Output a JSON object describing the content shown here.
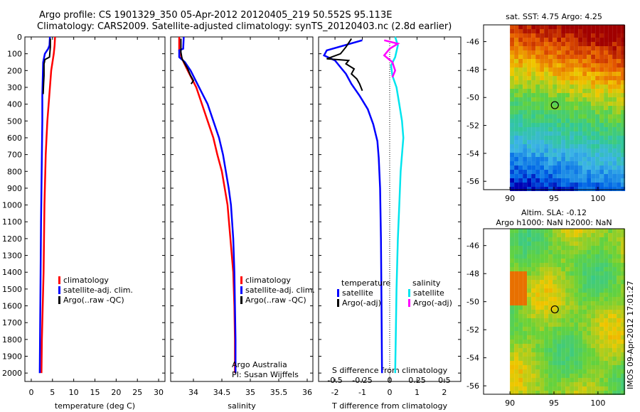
{
  "header": {
    "line1": "Argo profile: CS 1901329_350 05-Apr-2012 20120405_219 50.552S 95.113E",
    "line2": "Climatology: CARS2009. Satellite-adjusted climatology: synTS_20120403.nc (2.8d earlier)"
  },
  "footer_stamp": "IMOS 09-Apr-2012 17:01:27",
  "colors": {
    "climatology": "#ff0000",
    "satellite": "#0000ff",
    "argo": "#000000",
    "sat_salinity": "#00e5ee",
    "argo_salinity_diff": "#ff00ff"
  },
  "chart_data": [
    {
      "type": "line",
      "id": "temperature",
      "xlabel": "temperature (deg C)",
      "ylabel": "",
      "xlim": [
        -1.5,
        31.5
      ],
      "ylim": [
        2050,
        0
      ],
      "xticks": [
        0,
        5,
        10,
        15,
        20,
        25,
        30
      ],
      "yticks": [
        0,
        100,
        200,
        300,
        400,
        500,
        600,
        700,
        800,
        900,
        1000,
        1100,
        1200,
        1300,
        1400,
        1500,
        1600,
        1700,
        1800,
        1900,
        2000
      ],
      "legend": {
        "position": "bottom-center",
        "entries": [
          "climatology",
          "satellite-adj. clim.",
          "Argo(..raw -QC)"
        ]
      },
      "series": [
        {
          "name": "climatology",
          "color": "#ff0000",
          "points": [
            [
              5.6,
              0
            ],
            [
              5.5,
              50
            ],
            [
              5.3,
              100
            ],
            [
              5.0,
              150
            ],
            [
              4.7,
              200
            ],
            [
              4.4,
              300
            ],
            [
              4.1,
              400
            ],
            [
              3.8,
              500
            ],
            [
              3.6,
              600
            ],
            [
              3.4,
              700
            ],
            [
              3.3,
              800
            ],
            [
              3.2,
              900
            ],
            [
              3.1,
              1000
            ],
            [
              3.0,
              1200
            ],
            [
              2.9,
              1400
            ],
            [
              2.7,
              1600
            ],
            [
              2.5,
              1800
            ],
            [
              2.4,
              2000
            ]
          ]
        },
        {
          "name": "satellite-adj. clim.",
          "color": "#0000ff",
          "points": [
            [
              4.4,
              0
            ],
            [
              4.3,
              50
            ],
            [
              4.0,
              70
            ],
            [
              3.2,
              100
            ],
            [
              2.8,
              150
            ],
            [
              2.7,
              250
            ],
            [
              2.6,
              350
            ],
            [
              2.6,
              500
            ],
            [
              2.5,
              700
            ],
            [
              2.4,
              900
            ],
            [
              2.3,
              1100
            ],
            [
              2.2,
              1400
            ],
            [
              2.1,
              1700
            ],
            [
              2.0,
              2000
            ]
          ]
        },
        {
          "name": "Argo(..raw -QC)",
          "color": "#000000",
          "points": [
            [
              4.5,
              10
            ],
            [
              4.5,
              60
            ],
            [
              4.4,
              90
            ],
            [
              4.3,
              120
            ],
            [
              3.2,
              135
            ],
            [
              3.1,
              150
            ],
            [
              3.0,
              160
            ],
            [
              3.0,
              230
            ],
            [
              2.9,
              280
            ],
            [
              2.8,
              340
            ]
          ]
        }
      ]
    },
    {
      "type": "line",
      "id": "salinity",
      "xlabel": "salinity",
      "ylabel": "",
      "xlim": [
        33.6,
        36.1
      ],
      "ylim": [
        2050,
        0
      ],
      "xticks": [
        34,
        34.5,
        35,
        35.5,
        36
      ],
      "legend": {
        "position": "bottom-center",
        "entries": [
          "climatology",
          "satellite-adj. clim.",
          "Argo(..raw -QC)"
        ]
      },
      "annotations": [
        "Argo Australia",
        "PI: Susan Wijffels"
      ],
      "series": [
        {
          "name": "climatology",
          "color": "#ff0000",
          "points": [
            [
              33.75,
              0
            ],
            [
              33.75,
              80
            ],
            [
              33.8,
              130
            ],
            [
              33.9,
              200
            ],
            [
              34.05,
              300
            ],
            [
              34.15,
              400
            ],
            [
              34.25,
              500
            ],
            [
              34.35,
              600
            ],
            [
              34.42,
              700
            ],
            [
              34.5,
              800
            ],
            [
              34.55,
              900
            ],
            [
              34.6,
              1000
            ],
            [
              34.65,
              1200
            ],
            [
              34.7,
              1400
            ],
            [
              34.72,
              1600
            ],
            [
              34.73,
              1800
            ],
            [
              34.73,
              2000
            ]
          ]
        },
        {
          "name": "satellite-adj. clim.",
          "color": "#0000ff",
          "points": [
            [
              33.83,
              0
            ],
            [
              33.82,
              70
            ],
            [
              33.75,
              80
            ],
            [
              33.75,
              120
            ],
            [
              33.85,
              150
            ],
            [
              33.95,
              200
            ],
            [
              34.1,
              300
            ],
            [
              34.25,
              400
            ],
            [
              34.35,
              500
            ],
            [
              34.45,
              600
            ],
            [
              34.52,
              700
            ],
            [
              34.57,
              800
            ],
            [
              34.62,
              900
            ],
            [
              34.66,
              1000
            ],
            [
              34.7,
              1200
            ],
            [
              34.72,
              1400
            ],
            [
              34.73,
              1600
            ],
            [
              34.74,
              1800
            ],
            [
              34.74,
              2000
            ]
          ]
        },
        {
          "name": "Argo(..raw -QC)",
          "color": "#000000",
          "points": [
            [
              33.78,
              10
            ],
            [
              33.78,
              90
            ],
            [
              33.8,
              130
            ],
            [
              33.85,
              160
            ],
            [
              33.9,
              190
            ],
            [
              33.95,
              230
            ],
            [
              34.0,
              260
            ],
            [
              33.96,
              280
            ]
          ]
        }
      ]
    },
    {
      "type": "line",
      "id": "differences",
      "xlabel": "T difference from climatology",
      "title": "S difference from climatology",
      "xlim": [
        -2.6,
        2.6
      ],
      "ylim": [
        2050,
        0
      ],
      "xticks": [
        -2,
        -1,
        0,
        1,
        2
      ],
      "top_xticks": [
        "-0.5",
        "-0.25",
        "0",
        "0.25",
        "0.5"
      ],
      "legend": {
        "position": "bottom-center",
        "temperature_title": "temperature",
        "salinity_title": "salinity",
        "entries": [
          "satellite",
          "Argo(-adj)",
          "satellite",
          "Argo(-adj)"
        ]
      },
      "series": [
        {
          "name": "temperature satellite",
          "color": "#0000ff",
          "points": [
            [
              -1.0,
              20
            ],
            [
              -2.3,
              80
            ],
            [
              -2.4,
              110
            ],
            [
              -2.0,
              140
            ],
            [
              -1.8,
              180
            ],
            [
              -1.6,
              220
            ],
            [
              -1.4,
              280
            ],
            [
              -1.1,
              350
            ],
            [
              -0.8,
              430
            ],
            [
              -0.6,
              520
            ],
            [
              -0.45,
              620
            ],
            [
              -0.4,
              720
            ],
            [
              -0.35,
              900
            ],
            [
              -0.32,
              1200
            ],
            [
              -0.3,
              1600
            ],
            [
              -0.28,
              2000
            ]
          ]
        },
        {
          "name": "temperature Argo(-adj)",
          "color": "#000000",
          "points": [
            [
              -1.4,
              10
            ],
            [
              -1.6,
              60
            ],
            [
              -1.8,
              100
            ],
            [
              -2.3,
              130
            ],
            [
              -1.5,
              140
            ],
            [
              -1.6,
              160
            ],
            [
              -1.3,
              190
            ],
            [
              -1.4,
              220
            ],
            [
              -1.2,
              250
            ],
            [
              -1.1,
              280
            ],
            [
              -1.0,
              320
            ]
          ]
        },
        {
          "name": "salinity satellite",
          "color": "#00e5ee",
          "points": [
            [
              0.2,
              0
            ],
            [
              0.3,
              50
            ],
            [
              0.2,
              120
            ],
            [
              0.05,
              170
            ],
            [
              0.1,
              230
            ],
            [
              0.25,
              300
            ],
            [
              0.35,
              400
            ],
            [
              0.45,
              500
            ],
            [
              0.5,
              600
            ],
            [
              0.45,
              700
            ],
            [
              0.4,
              800
            ],
            [
              0.35,
              1000
            ],
            [
              0.3,
              1200
            ],
            [
              0.25,
              1500
            ],
            [
              0.22,
              1800
            ],
            [
              0.2,
              2000
            ]
          ]
        },
        {
          "name": "salinity Argo(-adj)",
          "color": "#ff00ff",
          "points": [
            [
              -0.2,
              20
            ],
            [
              0.3,
              40
            ],
            [
              0.0,
              70
            ],
            [
              -0.2,
              110
            ],
            [
              0.1,
              150
            ],
            [
              0.2,
              200
            ],
            [
              0.1,
              240
            ]
          ]
        }
      ]
    },
    {
      "type": "heatmap",
      "id": "sst-map",
      "title": "sat. SST: 4.75 Argo: 4.25",
      "xticks": [
        90,
        95,
        100
      ],
      "yticks": [
        -46,
        -48,
        -50,
        -52,
        -54,
        -56
      ],
      "xlim": [
        87,
        103
      ],
      "ylim": [
        -56.6,
        -44.8
      ],
      "marker": {
        "lon": 95.1,
        "lat": -50.55
      }
    },
    {
      "type": "heatmap",
      "id": "sla-map",
      "title": "Altim. SLA: -0.12",
      "subtitle": "Argo h1000: NaN h2000: NaN",
      "xticks": [
        90,
        95,
        100
      ],
      "yticks": [
        -46,
        -48,
        -50,
        -52,
        -54,
        -56
      ],
      "xlim": [
        87,
        103
      ],
      "ylim": [
        -56.6,
        -44.8
      ],
      "marker": {
        "lon": 95.1,
        "lat": -50.55
      }
    }
  ]
}
